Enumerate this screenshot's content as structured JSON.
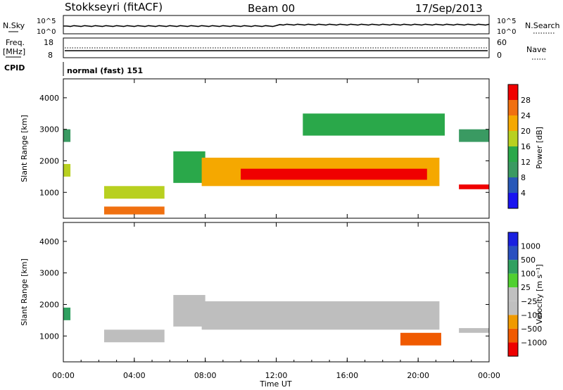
{
  "header": {
    "station": "Stokkseyri (fitACF)",
    "beam": "Beam 00",
    "date": "17/Sep/2013"
  },
  "strips": {
    "nsky": {
      "label": "N.Sky",
      "left_ticks": [
        "10^5",
        "10^0"
      ],
      "right_ticks": [
        "10^5",
        "10^0"
      ],
      "right_label": "N.Search"
    },
    "freq": {
      "label_line1": "Freq.",
      "label_line2": "[MHz]",
      "left_ticks": [
        "18",
        "8"
      ],
      "right_ticks": [
        "60",
        "0"
      ],
      "right_label": "Nave"
    },
    "cpid": {
      "label": "CPID",
      "value": "normal (fast) 151"
    }
  },
  "colors": {
    "power_scale": [
      "#1a14f0",
      "#2858b8",
      "#3a9a62",
      "#2aa84a",
      "#b8d020",
      "#f5a800",
      "#f07010",
      "#f00000"
    ],
    "velocity_scale": [
      "#ee0000",
      "#f05a00",
      "#f09a00",
      "#c0c0c0",
      "#c0c0c0",
      "#50d030",
      "#30a060",
      "#2a50c0",
      "#1a20e0"
    ],
    "ground_scatter": "#bebebe"
  },
  "chart_data": [
    {
      "type": "heatmap",
      "panel": "power",
      "ylabel": "Slant Range [km]",
      "xlabel": "",
      "ylim": [
        180,
        4600
      ],
      "yticks": [
        1000,
        2000,
        3000,
        4000
      ],
      "xlim_hours": [
        0,
        24
      ],
      "colorbar": {
        "label": "Power [dB]",
        "range": [
          0,
          32
        ],
        "ticks": [
          4,
          8,
          12,
          16,
          20,
          24,
          28
        ]
      },
      "echo_bands": [
        {
          "t0": 0.0,
          "t1": 0.4,
          "r0": 1500,
          "r1": 1900,
          "level": 18
        },
        {
          "t0": 0.0,
          "t1": 0.4,
          "r0": 2600,
          "r1": 3000,
          "level": 10
        },
        {
          "t0": 2.3,
          "t1": 5.7,
          "r0": 800,
          "r1": 1200,
          "level": 18
        },
        {
          "t0": 2.3,
          "t1": 5.7,
          "r0": 300,
          "r1": 550,
          "level": 26
        },
        {
          "t0": 6.2,
          "t1": 8.0,
          "r0": 1300,
          "r1": 2300,
          "level": 12
        },
        {
          "t0": 7.8,
          "t1": 21.2,
          "r0": 1200,
          "r1": 2100,
          "level": 20
        },
        {
          "t0": 10.0,
          "t1": 20.5,
          "r0": 1400,
          "r1": 1750,
          "level": 28
        },
        {
          "t0": 13.5,
          "t1": 21.5,
          "r0": 2800,
          "r1": 3500,
          "level": 12
        },
        {
          "t0": 22.3,
          "t1": 24.0,
          "r0": 1100,
          "r1": 1250,
          "level": 28
        },
        {
          "t0": 22.3,
          "t1": 24.0,
          "r0": 2600,
          "r1": 3000,
          "level": 10
        }
      ]
    },
    {
      "type": "heatmap",
      "panel": "velocity",
      "ylabel": "Slant Range [km]",
      "xlabel": "Time UT",
      "ylim": [
        180,
        4600
      ],
      "yticks": [
        1000,
        2000,
        3000,
        4000
      ],
      "xlim_hours": [
        0,
        24
      ],
      "xticks": [
        "00:00",
        "04:00",
        "08:00",
        "12:00",
        "16:00",
        "20:00",
        "00:00"
      ],
      "colorbar": {
        "label": "Velocity [m s⁻¹]",
        "ticks": [
          "1000",
          "500",
          "100",
          "25",
          "−25",
          "−100",
          "−500",
          "−1000"
        ]
      },
      "echo_bands": [
        {
          "t0": 0.0,
          "t1": 0.4,
          "r0": 1500,
          "r1": 1900,
          "velocity": 200
        },
        {
          "t0": 2.3,
          "t1": 5.7,
          "r0": 800,
          "r1": 1200,
          "velocity": 0,
          "ground_scatter": true
        },
        {
          "t0": 6.2,
          "t1": 8.0,
          "r0": 1300,
          "r1": 2300,
          "velocity": 0,
          "ground_scatter": true
        },
        {
          "t0": 7.8,
          "t1": 21.2,
          "r0": 1200,
          "r1": 2100,
          "velocity": 0,
          "ground_scatter": true
        },
        {
          "t0": 19.0,
          "t1": 21.3,
          "r0": 700,
          "r1": 1100,
          "velocity": -300
        },
        {
          "t0": 22.3,
          "t1": 24.0,
          "r0": 1100,
          "r1": 1250,
          "velocity": 0,
          "ground_scatter": true
        }
      ]
    }
  ]
}
